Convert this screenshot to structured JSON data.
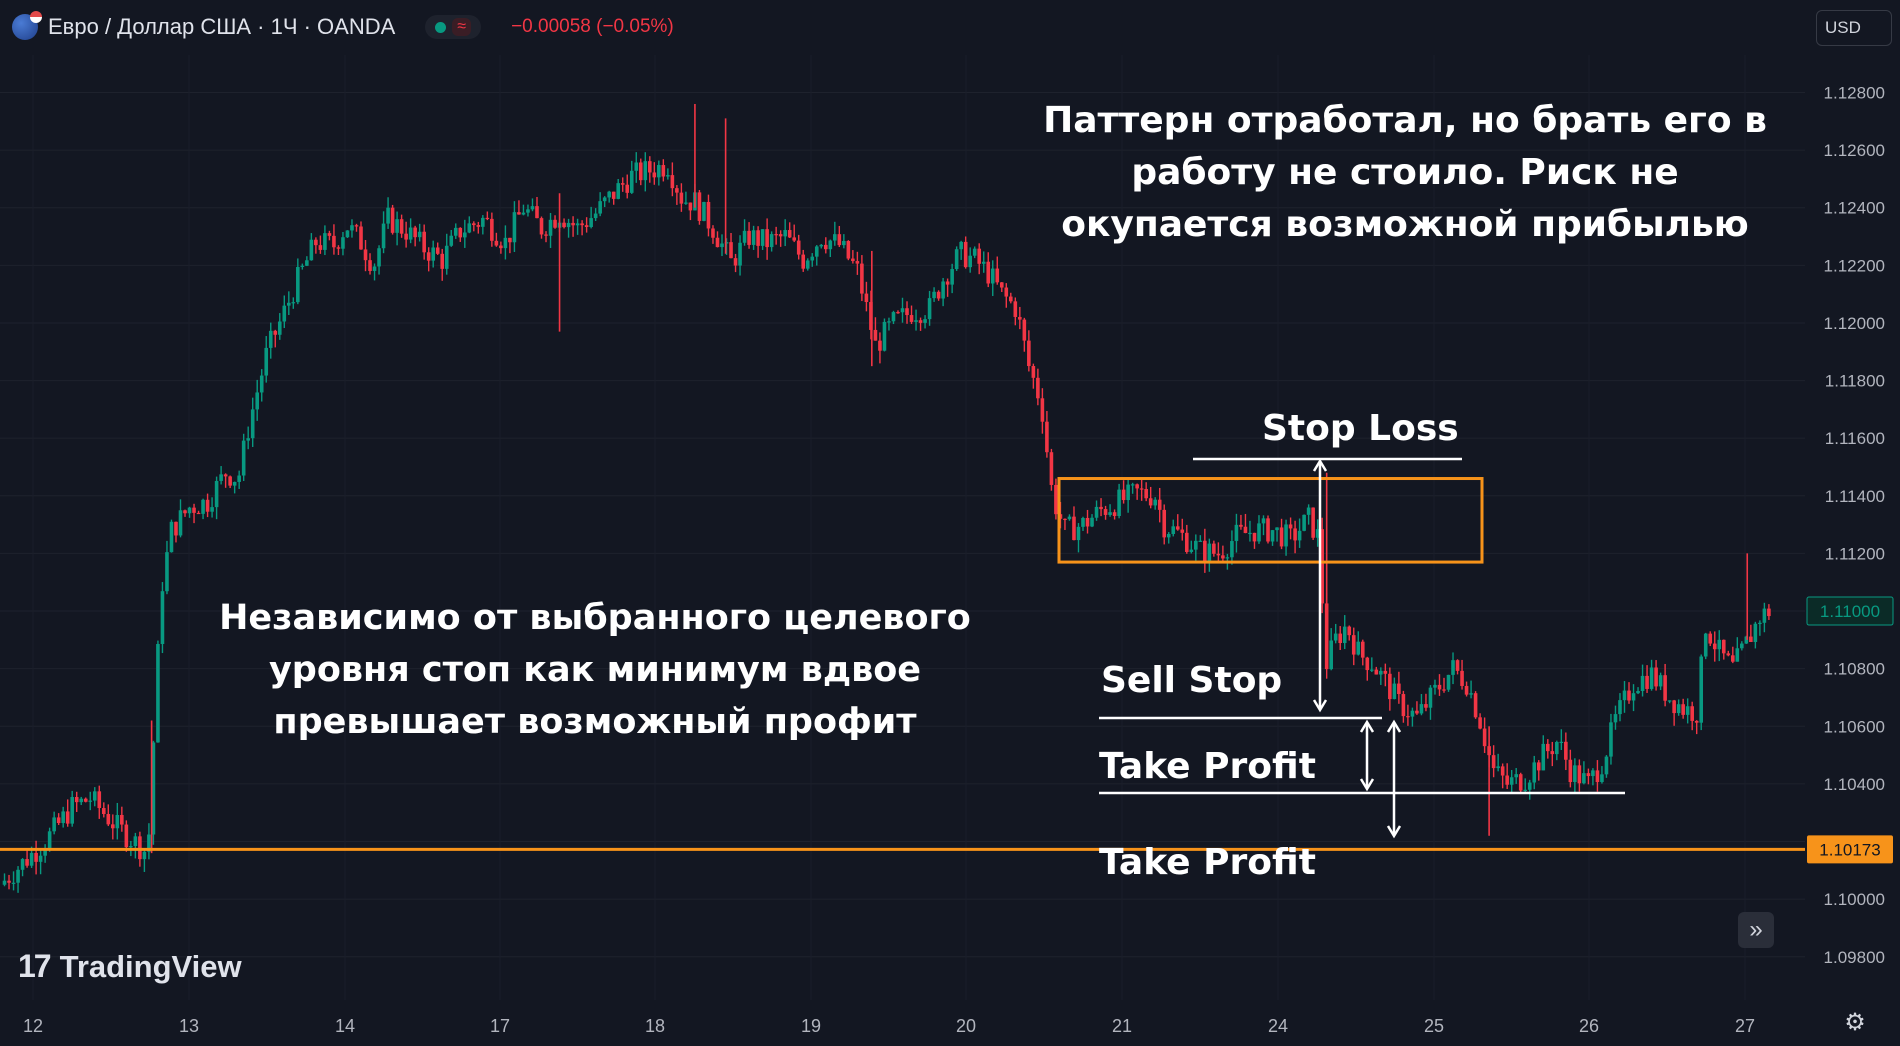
{
  "header": {
    "symbol_title": "Евро / Доллар США · 1Ч · OANDA",
    "approx_symbol": "≈",
    "price_change": "−0.00058 (−0.05%)",
    "currency_label": "USD",
    "flag_icon": "eur-usd-flag-icon",
    "status_icon": "market-open-dot-icon"
  },
  "colors": {
    "background": "#131722",
    "up": "#089981",
    "down": "#f23645",
    "level_line": "#f7931a",
    "annotation": "#ffffff",
    "current_price_tag": "#089981"
  },
  "annotations": {
    "top_text": "Паттерн отработал, но брать его в работу не стоило. Риск не окупается возможной прибылью",
    "left_text": "Независимо от выбранного целевого уровня стоп как  минимум вдвое превышает возможный профит",
    "stop_loss": "Stop Loss",
    "sell_stop": "Sell Stop",
    "take_profit_1": "Take Profit",
    "take_profit_2": "Take Profit"
  },
  "footer": {
    "logo_text": "TradingView",
    "logo_mark": "17",
    "scroll_icon": "double-chevron-right-icon",
    "settings_icon": "gear-icon"
  },
  "chart_data": {
    "type": "candlestick",
    "symbol": "EUR/USD",
    "timeframe": "1Ч",
    "ylim": [
      1.0965,
      1.1293
    ],
    "y_ticks": [
      "1.12800",
      "1.12600",
      "1.12400",
      "1.12200",
      "1.12000",
      "1.11800",
      "1.11600",
      "1.11400",
      "1.11200",
      "1.11000",
      "1.10800",
      "1.10600",
      "1.10400",
      "1.10200",
      "1.10000",
      "1.09800"
    ],
    "x_ticks": [
      "12",
      "13",
      "14",
      "17",
      "18",
      "19",
      "20",
      "21",
      "24",
      "25",
      "26",
      "27"
    ],
    "current_price": "1.11000",
    "horizontal_level": "1.10173",
    "level_value": 1.10173,
    "current_value": 1.11,
    "consolidation_box": {
      "y_top": 1.1146,
      "y_bottom": 1.1117
    },
    "close_path": [
      [
        0,
        1.1005
      ],
      [
        2.5,
        1.102
      ],
      [
        4,
        1.1032
      ],
      [
        5,
        1.1035
      ],
      [
        6.5,
        1.1025
      ],
      [
        8,
        1.1017
      ],
      [
        8.3,
        1.1024
      ],
      [
        8.6,
        1.107
      ],
      [
        9,
        1.111
      ],
      [
        9.5,
        1.1128
      ],
      [
        10.5,
        1.1136
      ],
      [
        11.5,
        1.1138
      ],
      [
        12.5,
        1.1148
      ],
      [
        13.2,
        1.1146
      ],
      [
        13.8,
        1.1165
      ],
      [
        14.8,
        1.119
      ],
      [
        15.5,
        1.12
      ],
      [
        16.5,
        1.1215
      ],
      [
        17.5,
        1.1228
      ],
      [
        18.5,
        1.1227
      ],
      [
        19.2,
        1.1234
      ],
      [
        20,
        1.1228
      ],
      [
        20.7,
        1.122
      ],
      [
        21.5,
        1.1236
      ],
      [
        22.5,
        1.1232
      ],
      [
        23.5,
        1.1226
      ],
      [
        24.5,
        1.1222
      ],
      [
        25.5,
        1.1232
      ],
      [
        26.8,
        1.1236
      ],
      [
        28,
        1.1228
      ],
      [
        29,
        1.124
      ],
      [
        30,
        1.1233
      ],
      [
        31,
        1.1238
      ],
      [
        32,
        1.1233
      ],
      [
        33,
        1.1238
      ],
      [
        34,
        1.1245
      ],
      [
        35,
        1.1251
      ],
      [
        36,
        1.1253
      ],
      [
        37,
        1.1255
      ],
      [
        37.8,
        1.1243
      ],
      [
        38.5,
        1.1242
      ],
      [
        39.5,
        1.1233
      ],
      [
        40.5,
        1.1221
      ],
      [
        41.5,
        1.123
      ],
      [
        42.5,
        1.1228
      ],
      [
        43.5,
        1.123
      ],
      [
        44.5,
        1.1222
      ],
      [
        45.5,
        1.123
      ],
      [
        46.5,
        1.1227
      ],
      [
        47.5,
        1.1218
      ],
      [
        48.5,
        1.1192
      ],
      [
        49.5,
        1.12
      ],
      [
        50.5,
        1.1204
      ],
      [
        51.5,
        1.1205
      ],
      [
        52.3,
        1.1216
      ],
      [
        53.2,
        1.1224
      ],
      [
        54,
        1.1222
      ],
      [
        54.8,
        1.1217
      ],
      [
        55.5,
        1.121
      ],
      [
        56.3,
        1.1205
      ],
      [
        57,
        1.1185
      ],
      [
        57.7,
        1.1172
      ],
      [
        58.3,
        1.114
      ],
      [
        59,
        1.1128
      ],
      [
        60,
        1.113
      ],
      [
        61,
        1.1135
      ],
      [
        62,
        1.1138
      ],
      [
        63,
        1.1141
      ],
      [
        64,
        1.114
      ],
      [
        64.5,
        1.113
      ],
      [
        65.5,
        1.1126
      ],
      [
        66.5,
        1.1121
      ],
      [
        67.5,
        1.112
      ],
      [
        68.5,
        1.1126
      ],
      [
        69.5,
        1.1128
      ],
      [
        70.5,
        1.1128
      ],
      [
        71.5,
        1.1125
      ],
      [
        72.5,
        1.1132
      ],
      [
        73,
        1.1126
      ],
      [
        73.5,
        1.1082
      ],
      [
        74,
        1.109
      ],
      [
        74.6,
        1.1095
      ],
      [
        75.3,
        1.1085
      ],
      [
        76,
        1.1082
      ],
      [
        76.8,
        1.1075
      ],
      [
        77.5,
        1.1068
      ],
      [
        78.5,
        1.1063
      ],
      [
        79.5,
        1.1072
      ],
      [
        80.5,
        1.108
      ],
      [
        81.3,
        1.1075
      ],
      [
        82,
        1.1062
      ],
      [
        82.7,
        1.1045
      ],
      [
        83.5,
        1.104
      ],
      [
        84.5,
        1.1042
      ],
      [
        85.5,
        1.105
      ],
      [
        86.3,
        1.1055
      ],
      [
        87,
        1.1045
      ],
      [
        88,
        1.104
      ],
      [
        88.8,
        1.1048
      ],
      [
        89.5,
        1.1062
      ],
      [
        90.5,
        1.1075
      ],
      [
        91.5,
        1.1078
      ],
      [
        92.5,
        1.107
      ],
      [
        93.3,
        1.1066
      ],
      [
        94,
        1.1065
      ],
      [
        94.5,
        1.1095
      ],
      [
        95.3,
        1.1085
      ],
      [
        96,
        1.108
      ],
      [
        96.7,
        1.1088
      ],
      [
        97.5,
        1.1098
      ],
      [
        98,
        1.11
      ]
    ],
    "wicks": [
      {
        "x": 38.5,
        "high": 1.1276,
        "low": 1.124
      },
      {
        "x": 40.2,
        "high": 1.1271,
        "low": 1.1224
      },
      {
        "x": 31,
        "high": 1.1245,
        "low": 1.1197
      },
      {
        "x": 48.3,
        "high": 1.1225,
        "low": 1.1185
      },
      {
        "x": 73.5,
        "high": 1.1148,
        "low": 1.109
      },
      {
        "x": 82.5,
        "high": 1.106,
        "low": 1.1022
      },
      {
        "x": 96.8,
        "high": 1.112,
        "low": 1.109
      },
      {
        "x": 8.4,
        "high": 1.1062,
        "low": 1.1016
      }
    ]
  }
}
